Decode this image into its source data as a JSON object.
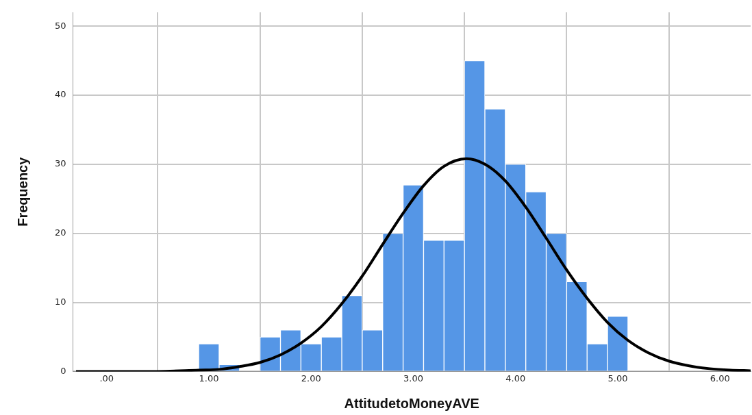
{
  "chart_data": {
    "type": "histogram",
    "xlabel": "AttitudetoMoneyAVE",
    "ylabel": "Frequency",
    "bins": [
      0.9,
      1.1,
      1.3,
      1.5,
      1.7,
      1.9,
      2.1,
      2.3,
      2.5,
      2.7,
      2.9,
      3.1,
      3.3,
      3.5,
      3.7,
      3.9,
      4.1,
      4.3,
      4.5,
      4.7,
      4.9,
      5.1
    ],
    "values": [
      4,
      1,
      0,
      5,
      6,
      4,
      5,
      11,
      6,
      20,
      27,
      19,
      19,
      45,
      38,
      30,
      26,
      20,
      13,
      4,
      8
    ],
    "color": "#5596e6",
    "series": [
      {
        "type": "line",
        "color": "#000000",
        "x": [
          -0.3,
          0.1,
          0.5,
          0.9,
          1.1,
          1.3,
          1.5,
          1.7,
          1.9,
          2.1,
          2.3,
          2.5,
          2.7,
          2.9,
          3.1,
          3.3,
          3.52,
          3.7,
          3.9,
          4.1,
          4.3,
          4.5,
          4.7,
          4.9,
          5.1,
          5.3,
          5.5,
          5.7,
          5.9,
          6.1,
          6.3
        ],
        "values": [
          0,
          0,
          0,
          0.2,
          0.3,
          0.7,
          1.3,
          2.4,
          4.1,
          6.5,
          9.8,
          13.8,
          18.4,
          22.9,
          26.9,
          29.7,
          30.8,
          30,
          27.6,
          23.8,
          19.3,
          14.7,
          10.6,
          7.1,
          4.5,
          2.7,
          1.5,
          0.8,
          0.4,
          0.2,
          0.1
        ]
      }
    ],
    "xlim": [
      -0.33,
      6.3
    ],
    "xticks": [
      {
        "value": 0,
        "label": ".00"
      },
      {
        "value": 1,
        "label": "1.00"
      },
      {
        "value": 2,
        "label": "2.00"
      },
      {
        "value": 3,
        "label": "3.00"
      },
      {
        "value": 4,
        "label": "4.00"
      },
      {
        "value": 5,
        "label": "5.00"
      },
      {
        "value": 6,
        "label": "6.00"
      }
    ],
    "ylim": [
      0,
      52
    ],
    "yticks": [
      0,
      10,
      20,
      30,
      40,
      50
    ],
    "grid": true,
    "marker": "none",
    "line_style": "solid"
  }
}
